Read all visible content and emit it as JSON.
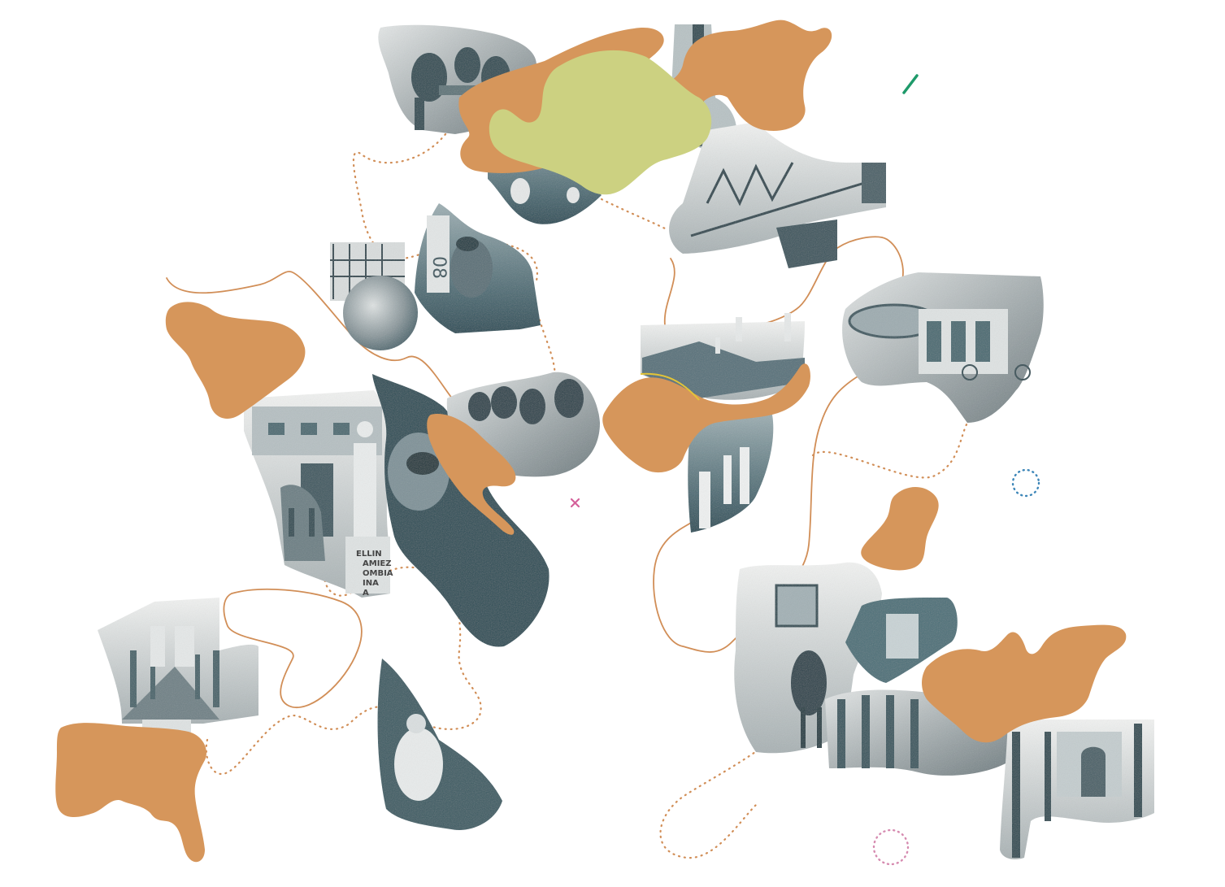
{
  "palette": {
    "ochre": "#d6965b",
    "lime": "#ccd181",
    "teal_dark": "#244a55",
    "teal_mid": "#4f6f78",
    "gray_light": "#c9cfd0",
    "gray_mid": "#8d979a",
    "path_orange": "#d18e57",
    "accent_green": "#1e9a6a",
    "accent_blue": "#3d86b8",
    "accent_pink": "#d68bb0",
    "accent_magenta": "#d4619a",
    "accent_yellow": "#e3c437"
  },
  "monument_plaque": {
    "line1": "ELLIN",
    "line2": "AMIEZ",
    "line3": "OMBIA",
    "line4": "INA",
    "line5": "A"
  },
  "tower_sign": "08",
  "icons": [
    "close-icon",
    "dotted-ring-icon",
    "slash-mark-icon"
  ]
}
